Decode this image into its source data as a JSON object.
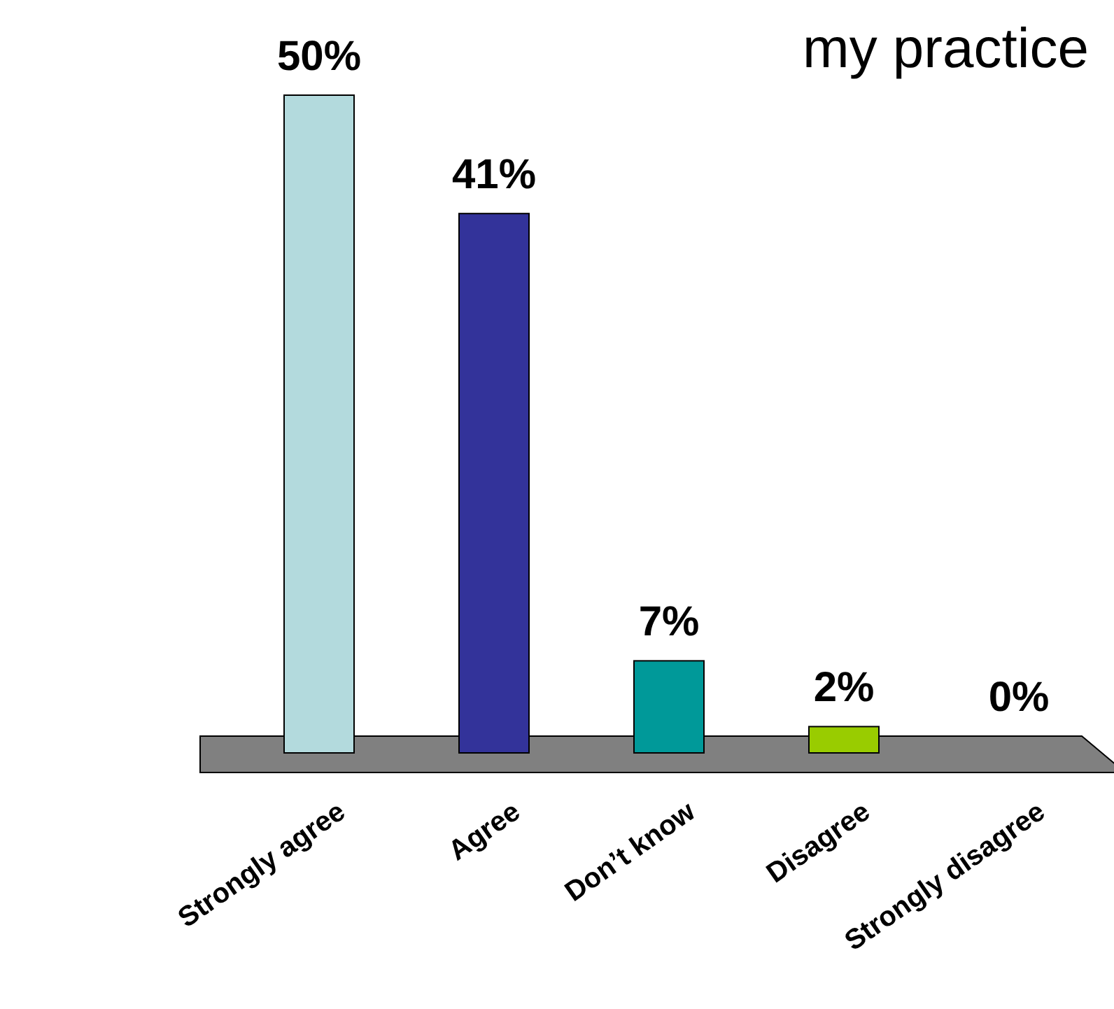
{
  "chart_data": {
    "type": "bar",
    "title": "my practice",
    "categories": [
      "Strongly agree",
      "Agree",
      "Don’t know",
      "Disagree",
      "Strongly disagree"
    ],
    "values": [
      50,
      41,
      7,
      2,
      0
    ],
    "colors": [
      "#b3dadd",
      "#33339a",
      "#009999",
      "#99cc00",
      "#808080"
    ],
    "value_labels": [
      "50%",
      "41%",
      "7%",
      "2%",
      "0%"
    ]
  }
}
